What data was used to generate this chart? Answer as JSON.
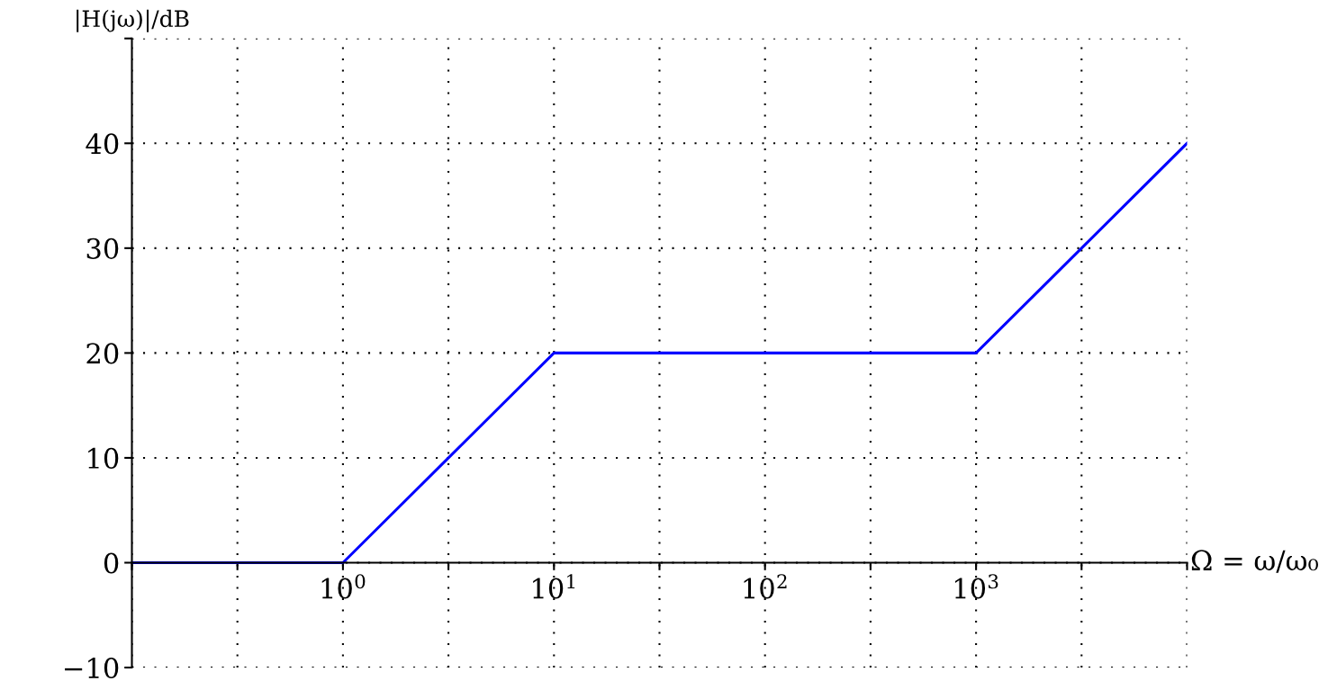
{
  "chart_data": {
    "type": "line",
    "xlabel": "Ω = ω/ω₀",
    "ylabel": "|H(jω)|/dB",
    "x": [
      0.1,
      1,
      10,
      1000,
      10000
    ],
    "series": [
      {
        "color": "#0000ff",
        "values": [
          0,
          0,
          20,
          20,
          40
        ]
      }
    ],
    "log": "x",
    "xlim": [
      0.1,
      10000
    ],
    "ylim": [
      -10,
      50
    ],
    "xticks": [
      {
        "value": 0.1,
        "label": null
      },
      {
        "value": 0.3162,
        "label": null
      },
      {
        "value": 1,
        "label": "10$^{0}$"
      },
      {
        "value": 3.162,
        "label": null
      },
      {
        "value": 10,
        "label": "10$^{1}$"
      },
      {
        "value": 31.62,
        "label": null
      },
      {
        "value": 100,
        "label": "10$^{2}$"
      },
      {
        "value": 316.2,
        "label": null
      },
      {
        "value": 1000,
        "label": "10$^{3}$"
      },
      {
        "value": 3162,
        "label": null
      },
      {
        "value": 10000,
        "label": null
      }
    ],
    "yticks": [
      -10,
      0,
      10,
      20,
      30,
      40,
      {
        "value": 50,
        "label": null
      }
    ],
    "grid": true,
    "marker": "none",
    "line_style": "solid"
  }
}
